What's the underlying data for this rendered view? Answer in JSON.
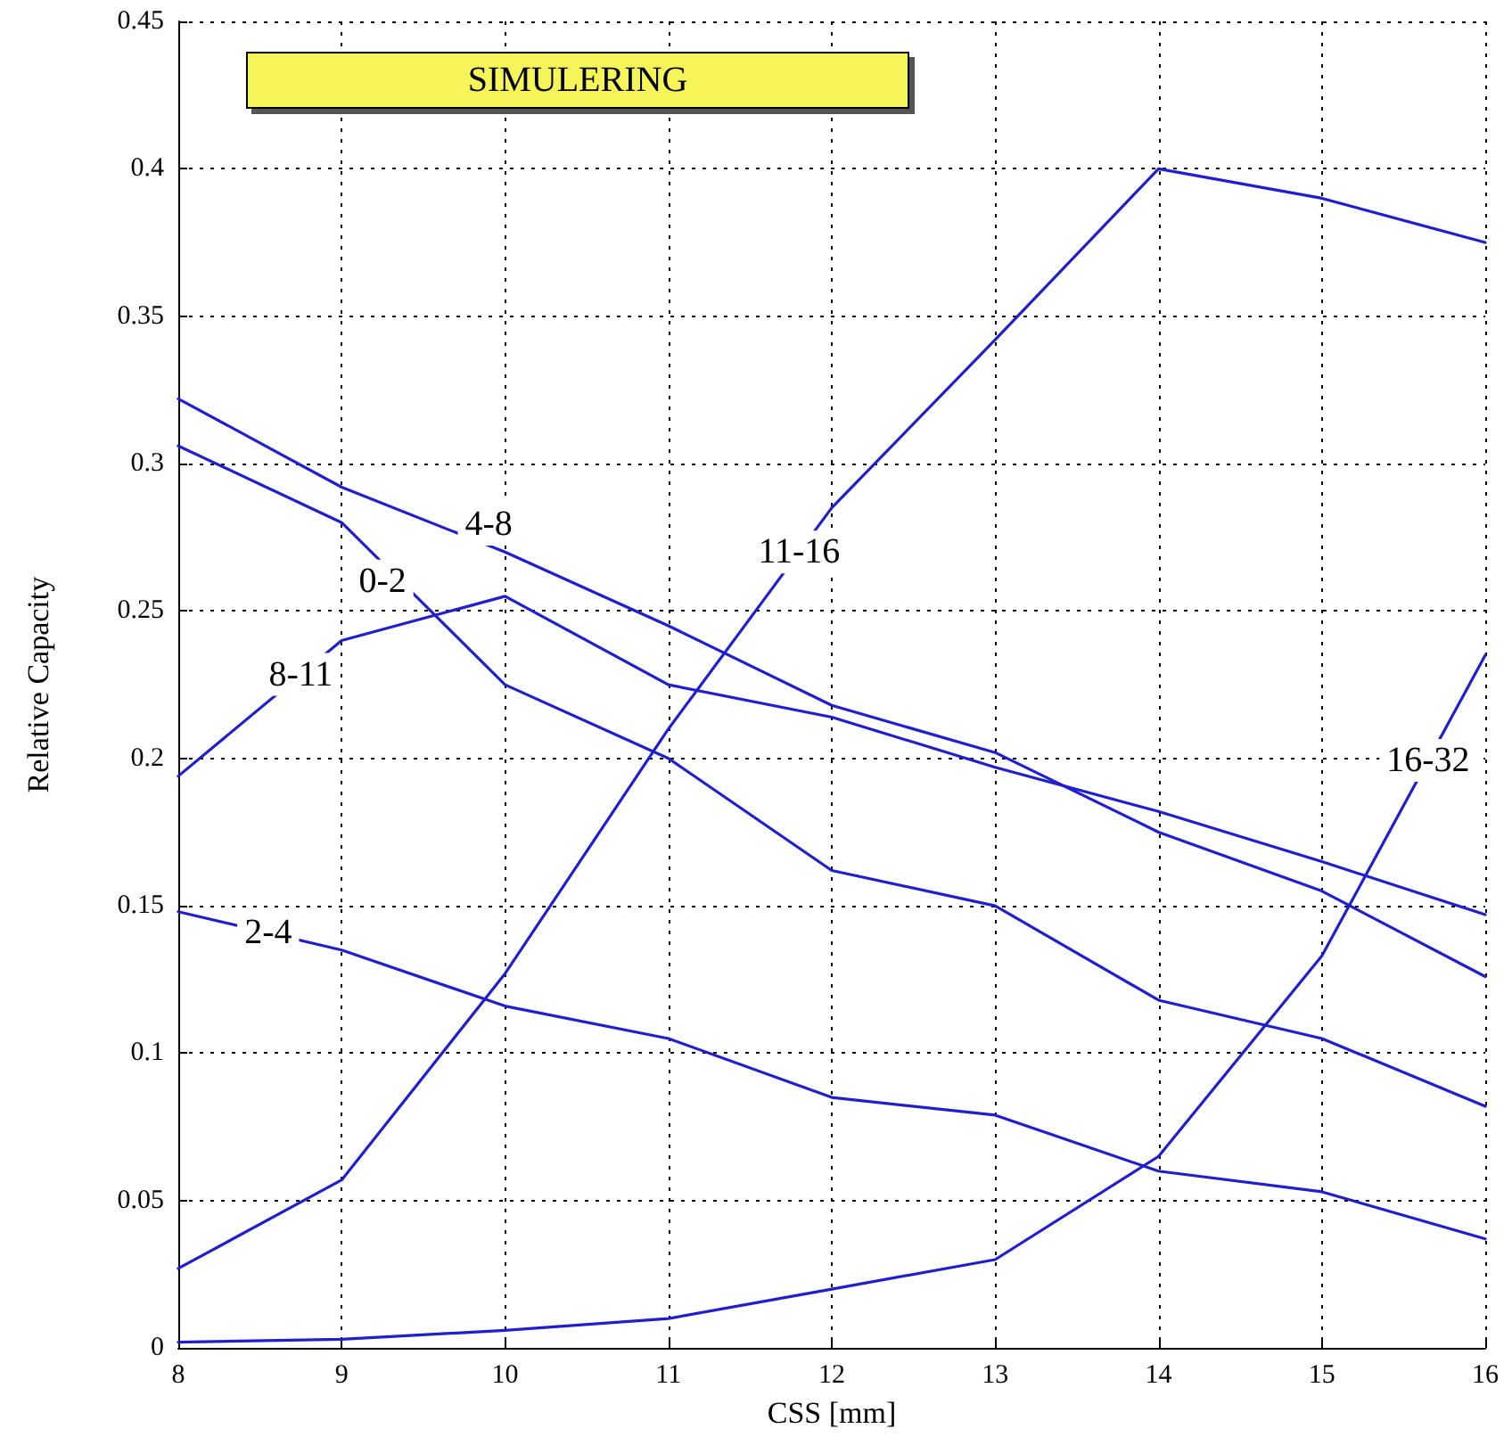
{
  "chart_data": {
    "type": "line",
    "title": "SIMULERING",
    "xlabel": "CSS [mm]",
    "ylabel": "Relative Capacity",
    "x": [
      8,
      9,
      10,
      11,
      12,
      13,
      14,
      15,
      16
    ],
    "series": [
      {
        "name": "0-2",
        "color": "#1f1fd0",
        "values": [
          0.306,
          0.28,
          0.225,
          0.2,
          0.162,
          0.15,
          0.118,
          0.105,
          0.082
        ]
      },
      {
        "name": "2-4",
        "color": "#1f1fd0",
        "values": [
          0.148,
          0.135,
          0.116,
          0.105,
          0.085,
          0.079,
          0.06,
          0.053,
          0.037
        ]
      },
      {
        "name": "4-8",
        "color": "#1f1fd0",
        "values": [
          0.322,
          0.292,
          0.27,
          0.245,
          0.218,
          0.202,
          0.175,
          0.155,
          0.126
        ]
      },
      {
        "name": "8-11",
        "color": "#1f1fd0",
        "values": [
          0.194,
          0.24,
          0.255,
          0.225,
          0.214,
          0.197,
          0.182,
          0.165,
          0.147
        ]
      },
      {
        "name": "11-16",
        "color": "#1f1fd0",
        "values": [
          0.027,
          0.057,
          0.127,
          0.21,
          0.285,
          0.342,
          0.4,
          0.39,
          0.375
        ]
      },
      {
        "name": "16-32",
        "color": "#1f1fd0",
        "values": [
          0.002,
          0.003,
          0.006,
          0.01,
          0.02,
          0.03,
          0.065,
          0.133,
          0.235
        ]
      }
    ],
    "xlim": [
      8,
      16
    ],
    "xticks": [
      8,
      9,
      10,
      11,
      12,
      13,
      14,
      15,
      16
    ],
    "ylim": [
      0,
      0.45
    ],
    "yticks": [
      0,
      0.05,
      0.1,
      0.15,
      0.2,
      0.25,
      0.3,
      0.35,
      0.4,
      0.45
    ],
    "grid": true,
    "legend": false,
    "marker": "none",
    "line_style": "solid"
  }
}
